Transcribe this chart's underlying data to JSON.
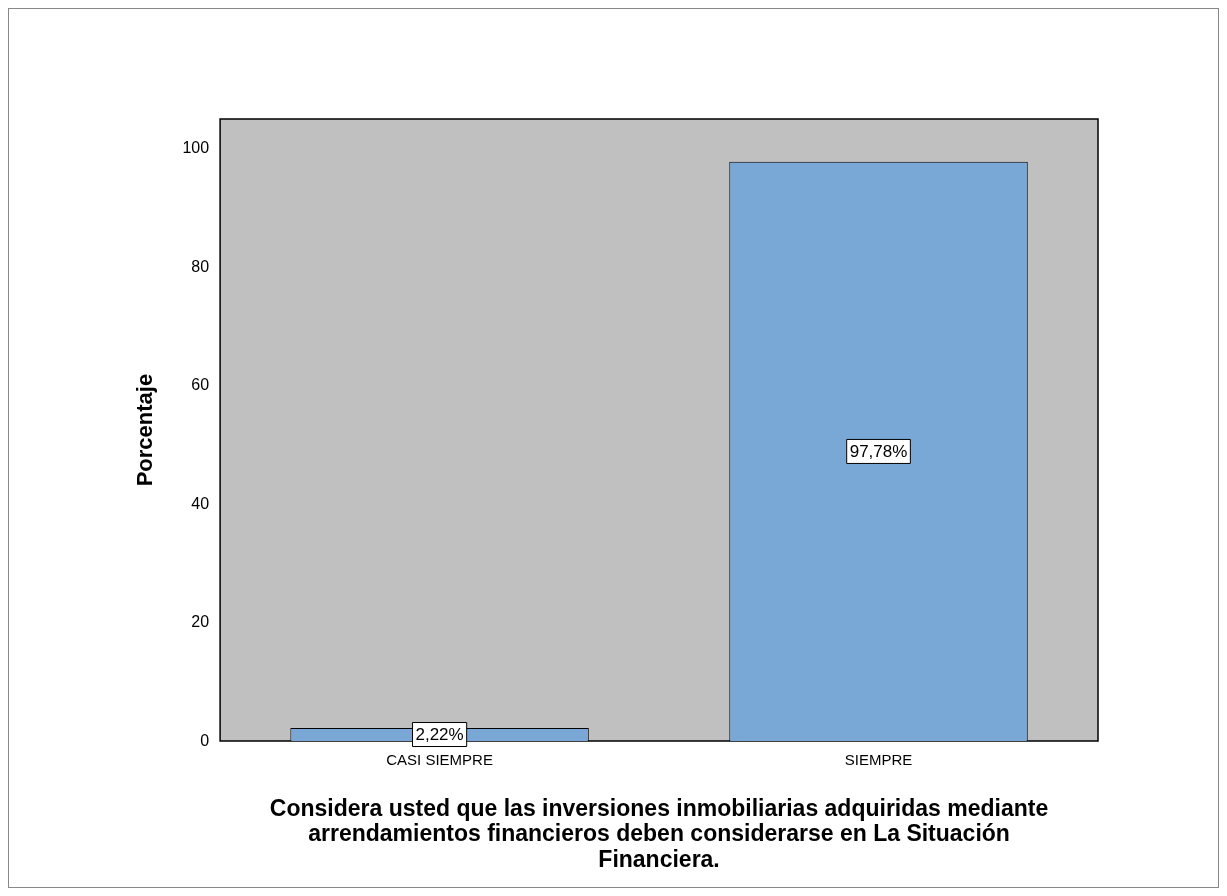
{
  "chart_data": {
    "type": "bar",
    "xlabel": "Considera usted que las inversiones inmobiliarias adquiridas mediante arrendamientos financieros deben considerarse en La Situación Financiera.",
    "ylabel": "Porcentaje",
    "categories": [
      "CASI SIEMPRE",
      "SIEMPRE"
    ],
    "values": [
      2.22,
      97.78
    ],
    "value_labels": [
      "2,22%",
      "97,78%"
    ],
    "color": "#79a8d6",
    "ylim": [
      0,
      105
    ],
    "yticks": [
      0,
      20,
      40,
      60,
      80,
      100
    ],
    "grid": false,
    "legend": false
  }
}
